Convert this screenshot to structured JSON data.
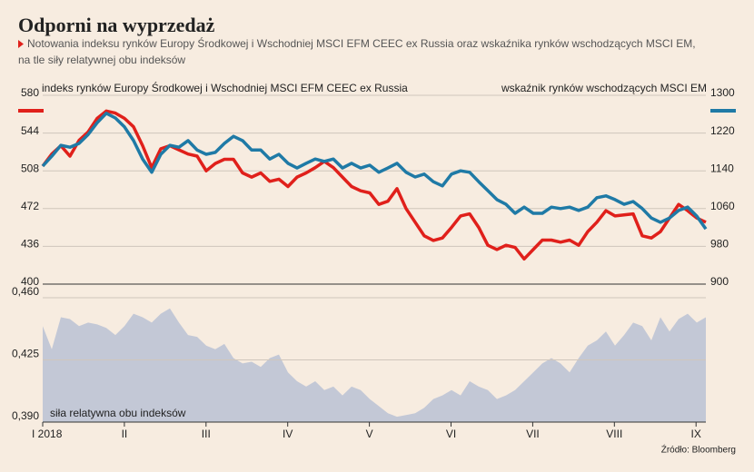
{
  "title": "Odporni na wyprzedaż",
  "subtitle": [
    "Notowania indeksu rynków Europy Środkowej i Wschodniej MSCI EFM CEEC ex Russia oraz wskaźnika rynków wschodzących MSCI EM,",
    "na tle siły relatywnej obu indeksów"
  ],
  "source": "Źródło: Bloomberg",
  "chart_data": [
    {
      "type": "line",
      "xlim": [
        1,
        9.12
      ],
      "ylim": [
        400,
        580
      ],
      "yticks": [
        400,
        436,
        472,
        508,
        544,
        580
      ],
      "y2lim": [
        900,
        1300
      ],
      "y2ticks": [
        900,
        980,
        1060,
        1140,
        1220,
        1300
      ],
      "grid": true,
      "series": [
        {
          "name": "indeks rynków Europy Środkowej i Wschodniej MSCI EFM CEEC ex Russia",
          "color": "#e0201b",
          "values": [
            512.5,
            524,
            532,
            522,
            537,
            545,
            558,
            565,
            563,
            558,
            550,
            532,
            511,
            529,
            532,
            528,
            524,
            522,
            508,
            515,
            519,
            519,
            506,
            502,
            506,
            498,
            500,
            493,
            502,
            506,
            511,
            517,
            511,
            502,
            493,
            489,
            487,
            476,
            479,
            491,
            472,
            459,
            446,
            441.6,
            444,
            454,
            465,
            467,
            454,
            437,
            433,
            437,
            435,
            424,
            433,
            442,
            442,
            440,
            442,
            437,
            450,
            459,
            470,
            465,
            466,
            467,
            446,
            444,
            450,
            463,
            476,
            470,
            463,
            459
          ]
        },
        {
          "name": "wskaźnik rynków wschodzących MSCI EM",
          "color": "#1f7aa6",
          "axis": "y2",
          "values": [
            1150,
            1171,
            1194,
            1190,
            1198,
            1217,
            1242,
            1262,
            1252,
            1233,
            1204,
            1165,
            1137,
            1175,
            1194,
            1190,
            1204,
            1184,
            1175,
            1179,
            1198,
            1213,
            1204,
            1184,
            1184,
            1165,
            1175,
            1156,
            1146,
            1156,
            1165,
            1160,
            1165,
            1146,
            1156,
            1146,
            1152,
            1137,
            1146,
            1156,
            1137,
            1127,
            1133,
            1117,
            1108,
            1133,
            1140,
            1137,
            1117,
            1098,
            1079,
            1069,
            1050,
            1063,
            1050,
            1050,
            1063,
            1060,
            1063,
            1056,
            1063,
            1083,
            1087,
            1079,
            1069,
            1075,
            1060,
            1040,
            1031,
            1040,
            1056,
            1063,
            1044,
            1017
          ]
        }
      ]
    },
    {
      "type": "area",
      "label": "siła relatywna obu indeksów",
      "color": "#c3c8d6",
      "xlim": [
        1,
        9.12
      ],
      "xticks": [
        {
          "value": 1,
          "label": "I 2018"
        },
        {
          "value": 2,
          "label": "II"
        },
        {
          "value": 3,
          "label": "III"
        },
        {
          "value": 4,
          "label": "IV"
        },
        {
          "value": 5,
          "label": "V"
        },
        {
          "value": 6,
          "label": "VI"
        },
        {
          "value": 7,
          "label": "VII"
        },
        {
          "value": 8,
          "label": "VIII"
        },
        {
          "value": 9,
          "label": "IX"
        }
      ],
      "ylim": [
        0.39,
        0.46
      ],
      "yticks": [
        {
          "value": 0.39,
          "label": "0,390"
        },
        {
          "value": 0.425,
          "label": "0,425"
        },
        {
          "value": 0.46,
          "label": "0,460"
        }
      ],
      "grid": true,
      "values": [
        0.444,
        0.431,
        0.449,
        0.448,
        0.444,
        0.446,
        0.445,
        0.443,
        0.439,
        0.444,
        0.451,
        0.449,
        0.446,
        0.451,
        0.454,
        0.446,
        0.439,
        0.438,
        0.433,
        0.431,
        0.434,
        0.426,
        0.423,
        0.424,
        0.421,
        0.426,
        0.428,
        0.418,
        0.413,
        0.41,
        0.413,
        0.408,
        0.41,
        0.405,
        0.41,
        0.408,
        0.403,
        0.399,
        0.395,
        0.393,
        0.394,
        0.395,
        0.398,
        0.403,
        0.405,
        0.408,
        0.405,
        0.413,
        0.41,
        0.408,
        0.403,
        0.405,
        0.408,
        0.413,
        0.418,
        0.423,
        0.426,
        0.423,
        0.418,
        0.426,
        0.433,
        0.436,
        0.441,
        0.433,
        0.439,
        0.446,
        0.444,
        0.436,
        0.449,
        0.441,
        0.448,
        0.451,
        0.446,
        0.449
      ]
    }
  ]
}
